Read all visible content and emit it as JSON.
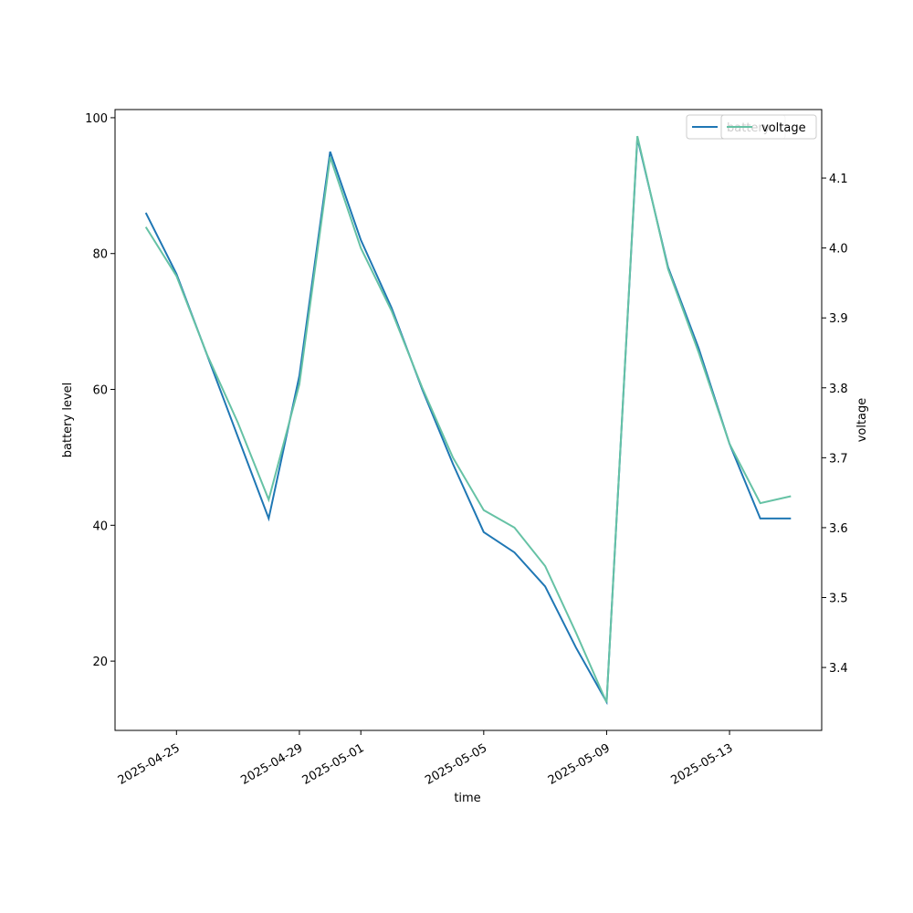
{
  "chart_data": {
    "type": "line",
    "x_label": "time",
    "y_label": "battery level",
    "y2_label": "voltage",
    "x": [
      "2025-04-24",
      "2025-04-25",
      "2025-04-26",
      "2025-04-27",
      "2025-04-28",
      "2025-04-29",
      "2025-04-30",
      "2025-05-01",
      "2025-05-02",
      "2025-05-03",
      "2025-05-04",
      "2025-05-05",
      "2025-05-06",
      "2025-05-07",
      "2025-05-08",
      "2025-05-09",
      "2025-05-10",
      "2025-05-11",
      "2025-05-12",
      "2025-05-13",
      "2025-05-14",
      "2025-05-15"
    ],
    "series": [
      {
        "name": "battery",
        "color": "#1f77b4",
        "values": [
          86,
          77,
          65,
          53,
          41,
          62,
          95,
          82,
          72,
          60,
          49,
          39,
          36,
          31,
          22,
          14,
          97,
          78,
          66,
          52,
          41,
          41
        ]
      },
      {
        "name": "voltage",
        "color": "#66c2a5",
        "axis": "y2",
        "values": [
          4.03,
          3.96,
          3.847,
          3.75,
          3.64,
          3.805,
          4.13,
          4.0,
          3.91,
          3.8,
          3.7,
          3.625,
          3.6,
          3.545,
          3.45,
          3.35,
          4.16,
          3.97,
          3.85,
          3.72,
          3.635,
          3.645
        ]
      }
    ],
    "xlim": [
      "2025-04-23",
      "2025-05-16"
    ],
    "xticks": [
      "2025-04-25",
      "2025-04-29",
      "2025-05-01",
      "2025-05-05",
      "2025-05-09",
      "2025-05-13"
    ],
    "ylim": [
      9.8,
      101.2
    ],
    "yticks": [
      20,
      40,
      60,
      80,
      100
    ],
    "y2lim": [
      3.31,
      4.198
    ],
    "y2ticks": [
      3.4,
      3.5,
      3.6,
      3.7,
      3.8,
      3.9,
      {
        "value": 4,
        "label": "4.0"
      },
      4.1
    ],
    "legend": "upper right"
  }
}
